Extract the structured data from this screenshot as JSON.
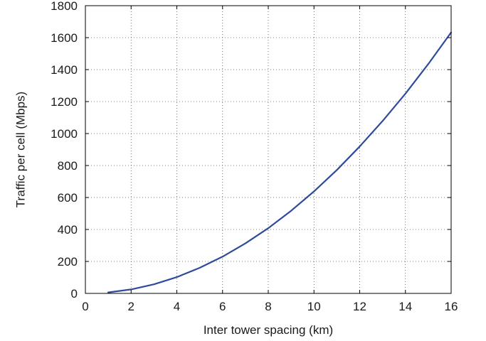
{
  "chart_data": {
    "type": "line",
    "title": "",
    "xlabel": "Inter tower spacing (km)",
    "ylabel": "Traffic per cell (Mbps)",
    "xlim": [
      0,
      16
    ],
    "ylim": [
      0,
      1800
    ],
    "xticks": [
      0,
      2,
      4,
      6,
      8,
      10,
      12,
      14,
      16
    ],
    "yticks": [
      0,
      200,
      400,
      600,
      800,
      1000,
      1200,
      1400,
      1600,
      1800
    ],
    "xtick_labels": [
      "0",
      "2",
      "4",
      "6",
      "8",
      "10",
      "12",
      "14",
      "16"
    ],
    "ytick_labels": [
      "0",
      "200",
      "400",
      "600",
      "800",
      "1000",
      "1200",
      "1400",
      "1600",
      "1800"
    ],
    "grid": true,
    "grid_style": "dotted",
    "legend": "none",
    "series": [
      {
        "color": "#2e4a9a",
        "x": [
          1,
          2,
          3,
          4,
          5,
          6,
          7,
          8,
          9,
          10,
          11,
          12,
          13,
          14,
          15,
          16
        ],
        "y": [
          6,
          25,
          57,
          102,
          160,
          230,
          313,
          408,
          517,
          638,
          772,
          919,
          1078,
          1250,
          1435,
          1633
        ]
      }
    ]
  }
}
